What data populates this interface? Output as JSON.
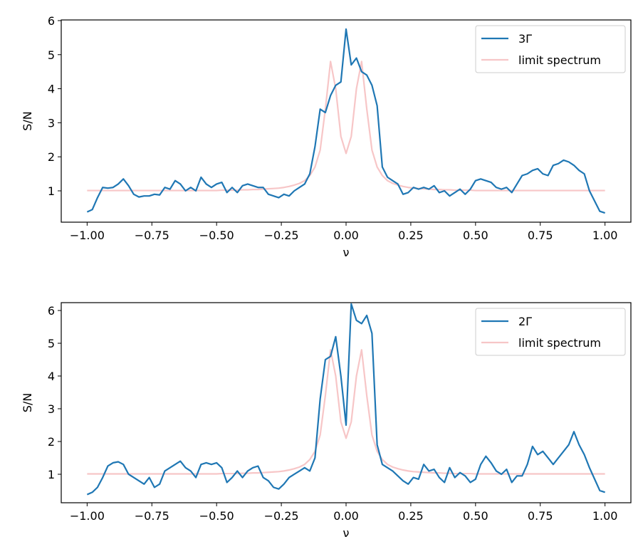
{
  "chart_data": [
    {
      "type": "line",
      "xlabel": "ν",
      "ylabel": "S/N",
      "xlim": [
        -1.1,
        1.1
      ],
      "ylim": [
        0.08,
        6.02
      ],
      "xticks": [
        {
          "value": -1,
          "label": "−1.00"
        },
        {
          "value": -0.75,
          "label": "−0.75"
        },
        {
          "value": -0.5,
          "label": "−0.50"
        },
        {
          "value": -0.25,
          "label": "−0.25"
        },
        {
          "value": 0,
          "label": "0.00"
        },
        {
          "value": 0.25,
          "label": "0.25"
        },
        {
          "value": 0.5,
          "label": "0.50"
        },
        {
          "value": 0.75,
          "label": "0.75"
        },
        {
          "value": 1,
          "label": "1.00"
        }
      ],
      "yticks": [
        1,
        2,
        3,
        4,
        5,
        6
      ],
      "legend": "upper right",
      "x": [
        -1,
        -0.98,
        -0.96,
        -0.94,
        -0.92,
        -0.9,
        -0.88,
        -0.86,
        -0.84,
        -0.82,
        -0.8,
        -0.78,
        -0.76,
        -0.74,
        -0.72,
        -0.7,
        -0.68,
        -0.66,
        -0.64,
        -0.62,
        -0.6,
        -0.58,
        -0.56,
        -0.54,
        -0.52,
        -0.5,
        -0.48,
        -0.46,
        -0.44,
        -0.42,
        -0.4,
        -0.38,
        -0.36,
        -0.34,
        -0.32,
        -0.3,
        -0.28,
        -0.26,
        -0.24,
        -0.22,
        -0.2,
        -0.18,
        -0.16,
        -0.14,
        -0.12,
        -0.1,
        -0.08,
        -0.06,
        -0.04,
        -0.02,
        0,
        0.02,
        0.04,
        0.06,
        0.08,
        0.1,
        0.12,
        0.14,
        0.16,
        0.18,
        0.2,
        0.22,
        0.24,
        0.26,
        0.28,
        0.3,
        0.32,
        0.34,
        0.36,
        0.38,
        0.4,
        0.42,
        0.44,
        0.46,
        0.48,
        0.5,
        0.52,
        0.54,
        0.56,
        0.58,
        0.6,
        0.62,
        0.64,
        0.66,
        0.68,
        0.7,
        0.72,
        0.74,
        0.76,
        0.78,
        0.8,
        0.82,
        0.84,
        0.86,
        0.88,
        0.9,
        0.92,
        0.94,
        0.96,
        0.98,
        1
      ],
      "series": [
        {
          "name": "3Γ",
          "color": "#1f77b4",
          "values": [
            0.38,
            0.45,
            0.8,
            1.1,
            1.08,
            1.1,
            1.2,
            1.35,
            1.15,
            0.9,
            0.82,
            0.85,
            0.85,
            0.9,
            0.88,
            1.1,
            1.05,
            1.3,
            1.2,
            1.0,
            1.1,
            1.0,
            1.4,
            1.2,
            1.1,
            1.2,
            1.25,
            0.95,
            1.1,
            0.95,
            1.15,
            1.2,
            1.15,
            1.1,
            1.1,
            0.9,
            0.85,
            0.8,
            0.9,
            0.85,
            1.0,
            1.1,
            1.2,
            1.5,
            2.3,
            3.4,
            3.3,
            3.8,
            4.1,
            4.2,
            5.75,
            4.7,
            4.9,
            4.5,
            4.4,
            4.1,
            3.5,
            1.7,
            1.4,
            1.3,
            1.2,
            0.9,
            0.95,
            1.1,
            1.05,
            1.1,
            1.05,
            1.15,
            0.95,
            1.0,
            0.85,
            0.95,
            1.05,
            0.9,
            1.05,
            1.3,
            1.35,
            1.3,
            1.25,
            1.1,
            1.05,
            1.1,
            0.95,
            1.2,
            1.45,
            1.5,
            1.6,
            1.65,
            1.5,
            1.45,
            1.75,
            1.8,
            1.9,
            1.85,
            1.75,
            1.6,
            1.5,
            1.0,
            0.7,
            0.4,
            0.35
          ]
        },
        {
          "name": "limit spectrum",
          "color": "#f7c6c7",
          "values": [
            1.01,
            1.01,
            1.01,
            1.01,
            1.01,
            1.01,
            1.01,
            1.01,
            1.01,
            1.01,
            1.01,
            1.01,
            1.01,
            1.01,
            1.01,
            1.01,
            1.01,
            1.01,
            1.01,
            1.01,
            1.01,
            1.01,
            1.01,
            1.01,
            1.01,
            1.01,
            1.02,
            1.02,
            1.02,
            1.02,
            1.03,
            1.03,
            1.04,
            1.04,
            1.05,
            1.06,
            1.07,
            1.08,
            1.1,
            1.13,
            1.17,
            1.22,
            1.3,
            1.45,
            1.7,
            2.2,
            3.4,
            4.8,
            4.0,
            2.6,
            2.1,
            2.6,
            4.0,
            4.8,
            3.4,
            2.2,
            1.7,
            1.45,
            1.3,
            1.22,
            1.17,
            1.13,
            1.1,
            1.08,
            1.07,
            1.06,
            1.05,
            1.04,
            1.04,
            1.03,
            1.03,
            1.02,
            1.02,
            1.02,
            1.02,
            1.01,
            1.01,
            1.01,
            1.01,
            1.01,
            1.01,
            1.01,
            1.01,
            1.01,
            1.01,
            1.01,
            1.01,
            1.01,
            1.01,
            1.01,
            1.01,
            1.01,
            1.01,
            1.01,
            1.01,
            1.01,
            1.01,
            1.01,
            1.01,
            1.01,
            1.01
          ]
        }
      ]
    },
    {
      "type": "line",
      "xlabel": "ν",
      "ylabel": "S/N",
      "xlim": [
        -1.1,
        1.1
      ],
      "ylim": [
        0.13,
        6.24
      ],
      "xticks": [
        {
          "value": -1,
          "label": "−1.00"
        },
        {
          "value": -0.75,
          "label": "−0.75"
        },
        {
          "value": -0.5,
          "label": "−0.50"
        },
        {
          "value": -0.25,
          "label": "−0.25"
        },
        {
          "value": 0,
          "label": "0.00"
        },
        {
          "value": 0.25,
          "label": "0.25"
        },
        {
          "value": 0.5,
          "label": "0.50"
        },
        {
          "value": 0.75,
          "label": "0.75"
        },
        {
          "value": 1,
          "label": "1.00"
        }
      ],
      "yticks": [
        1,
        2,
        3,
        4,
        5,
        6
      ],
      "legend": "upper right",
      "x": [
        -1,
        -0.98,
        -0.96,
        -0.94,
        -0.92,
        -0.9,
        -0.88,
        -0.86,
        -0.84,
        -0.82,
        -0.8,
        -0.78,
        -0.76,
        -0.74,
        -0.72,
        -0.7,
        -0.68,
        -0.66,
        -0.64,
        -0.62,
        -0.6,
        -0.58,
        -0.56,
        -0.54,
        -0.52,
        -0.5,
        -0.48,
        -0.46,
        -0.44,
        -0.42,
        -0.4,
        -0.38,
        -0.36,
        -0.34,
        -0.32,
        -0.3,
        -0.28,
        -0.26,
        -0.24,
        -0.22,
        -0.2,
        -0.18,
        -0.16,
        -0.14,
        -0.12,
        -0.1,
        -0.08,
        -0.06,
        -0.04,
        -0.02,
        0,
        0.02,
        0.04,
        0.06,
        0.08,
        0.1,
        0.12,
        0.14,
        0.16,
        0.18,
        0.2,
        0.22,
        0.24,
        0.26,
        0.28,
        0.3,
        0.32,
        0.34,
        0.36,
        0.38,
        0.4,
        0.42,
        0.44,
        0.46,
        0.48,
        0.5,
        0.52,
        0.54,
        0.56,
        0.58,
        0.6,
        0.62,
        0.64,
        0.66,
        0.68,
        0.7,
        0.72,
        0.74,
        0.76,
        0.78,
        0.8,
        0.82,
        0.84,
        0.86,
        0.88,
        0.9,
        0.92,
        0.94,
        0.96,
        0.98,
        1
      ],
      "series": [
        {
          "name": "2Γ",
          "color": "#1f77b4",
          "values": [
            0.38,
            0.45,
            0.6,
            0.9,
            1.25,
            1.35,
            1.38,
            1.3,
            1.0,
            0.9,
            0.8,
            0.7,
            0.9,
            0.6,
            0.7,
            1.1,
            1.2,
            1.3,
            1.4,
            1.2,
            1.1,
            0.9,
            1.3,
            1.35,
            1.3,
            1.35,
            1.2,
            0.75,
            0.9,
            1.1,
            0.9,
            1.1,
            1.2,
            1.25,
            0.9,
            0.8,
            0.6,
            0.55,
            0.7,
            0.9,
            1.0,
            1.1,
            1.2,
            1.1,
            1.5,
            3.3,
            4.5,
            4.6,
            5.2,
            4.0,
            2.5,
            6.2,
            5.7,
            5.6,
            5.85,
            5.3,
            1.9,
            1.3,
            1.2,
            1.1,
            0.95,
            0.8,
            0.7,
            0.9,
            0.85,
            1.3,
            1.1,
            1.15,
            0.9,
            0.75,
            1.2,
            0.9,
            1.05,
            0.95,
            0.75,
            0.85,
            1.3,
            1.55,
            1.35,
            1.1,
            1.0,
            1.15,
            0.75,
            0.95,
            0.95,
            1.3,
            1.85,
            1.6,
            1.7,
            1.5,
            1.3,
            1.5,
            1.7,
            1.9,
            2.3,
            1.9,
            1.6,
            1.2,
            0.85,
            0.5,
            0.45
          ]
        },
        {
          "name": "limit spectrum",
          "color": "#f7c6c7",
          "values": [
            1.01,
            1.01,
            1.01,
            1.01,
            1.01,
            1.01,
            1.01,
            1.01,
            1.01,
            1.01,
            1.01,
            1.01,
            1.01,
            1.01,
            1.01,
            1.01,
            1.01,
            1.01,
            1.01,
            1.01,
            1.01,
            1.01,
            1.01,
            1.01,
            1.01,
            1.01,
            1.02,
            1.02,
            1.02,
            1.02,
            1.03,
            1.03,
            1.04,
            1.04,
            1.05,
            1.06,
            1.07,
            1.08,
            1.1,
            1.13,
            1.17,
            1.22,
            1.3,
            1.45,
            1.7,
            2.2,
            3.4,
            4.8,
            4.0,
            2.6,
            2.1,
            2.6,
            4.0,
            4.8,
            3.4,
            2.2,
            1.7,
            1.45,
            1.3,
            1.22,
            1.17,
            1.13,
            1.1,
            1.08,
            1.07,
            1.06,
            1.05,
            1.04,
            1.04,
            1.03,
            1.03,
            1.02,
            1.02,
            1.02,
            1.02,
            1.01,
            1.01,
            1.01,
            1.01,
            1.01,
            1.01,
            1.01,
            1.01,
            1.01,
            1.01,
            1.01,
            1.01,
            1.01,
            1.01,
            1.01,
            1.01,
            1.01,
            1.01,
            1.01,
            1.01,
            1.01,
            1.01,
            1.01,
            1.01,
            1.01,
            1.01
          ]
        }
      ]
    }
  ]
}
